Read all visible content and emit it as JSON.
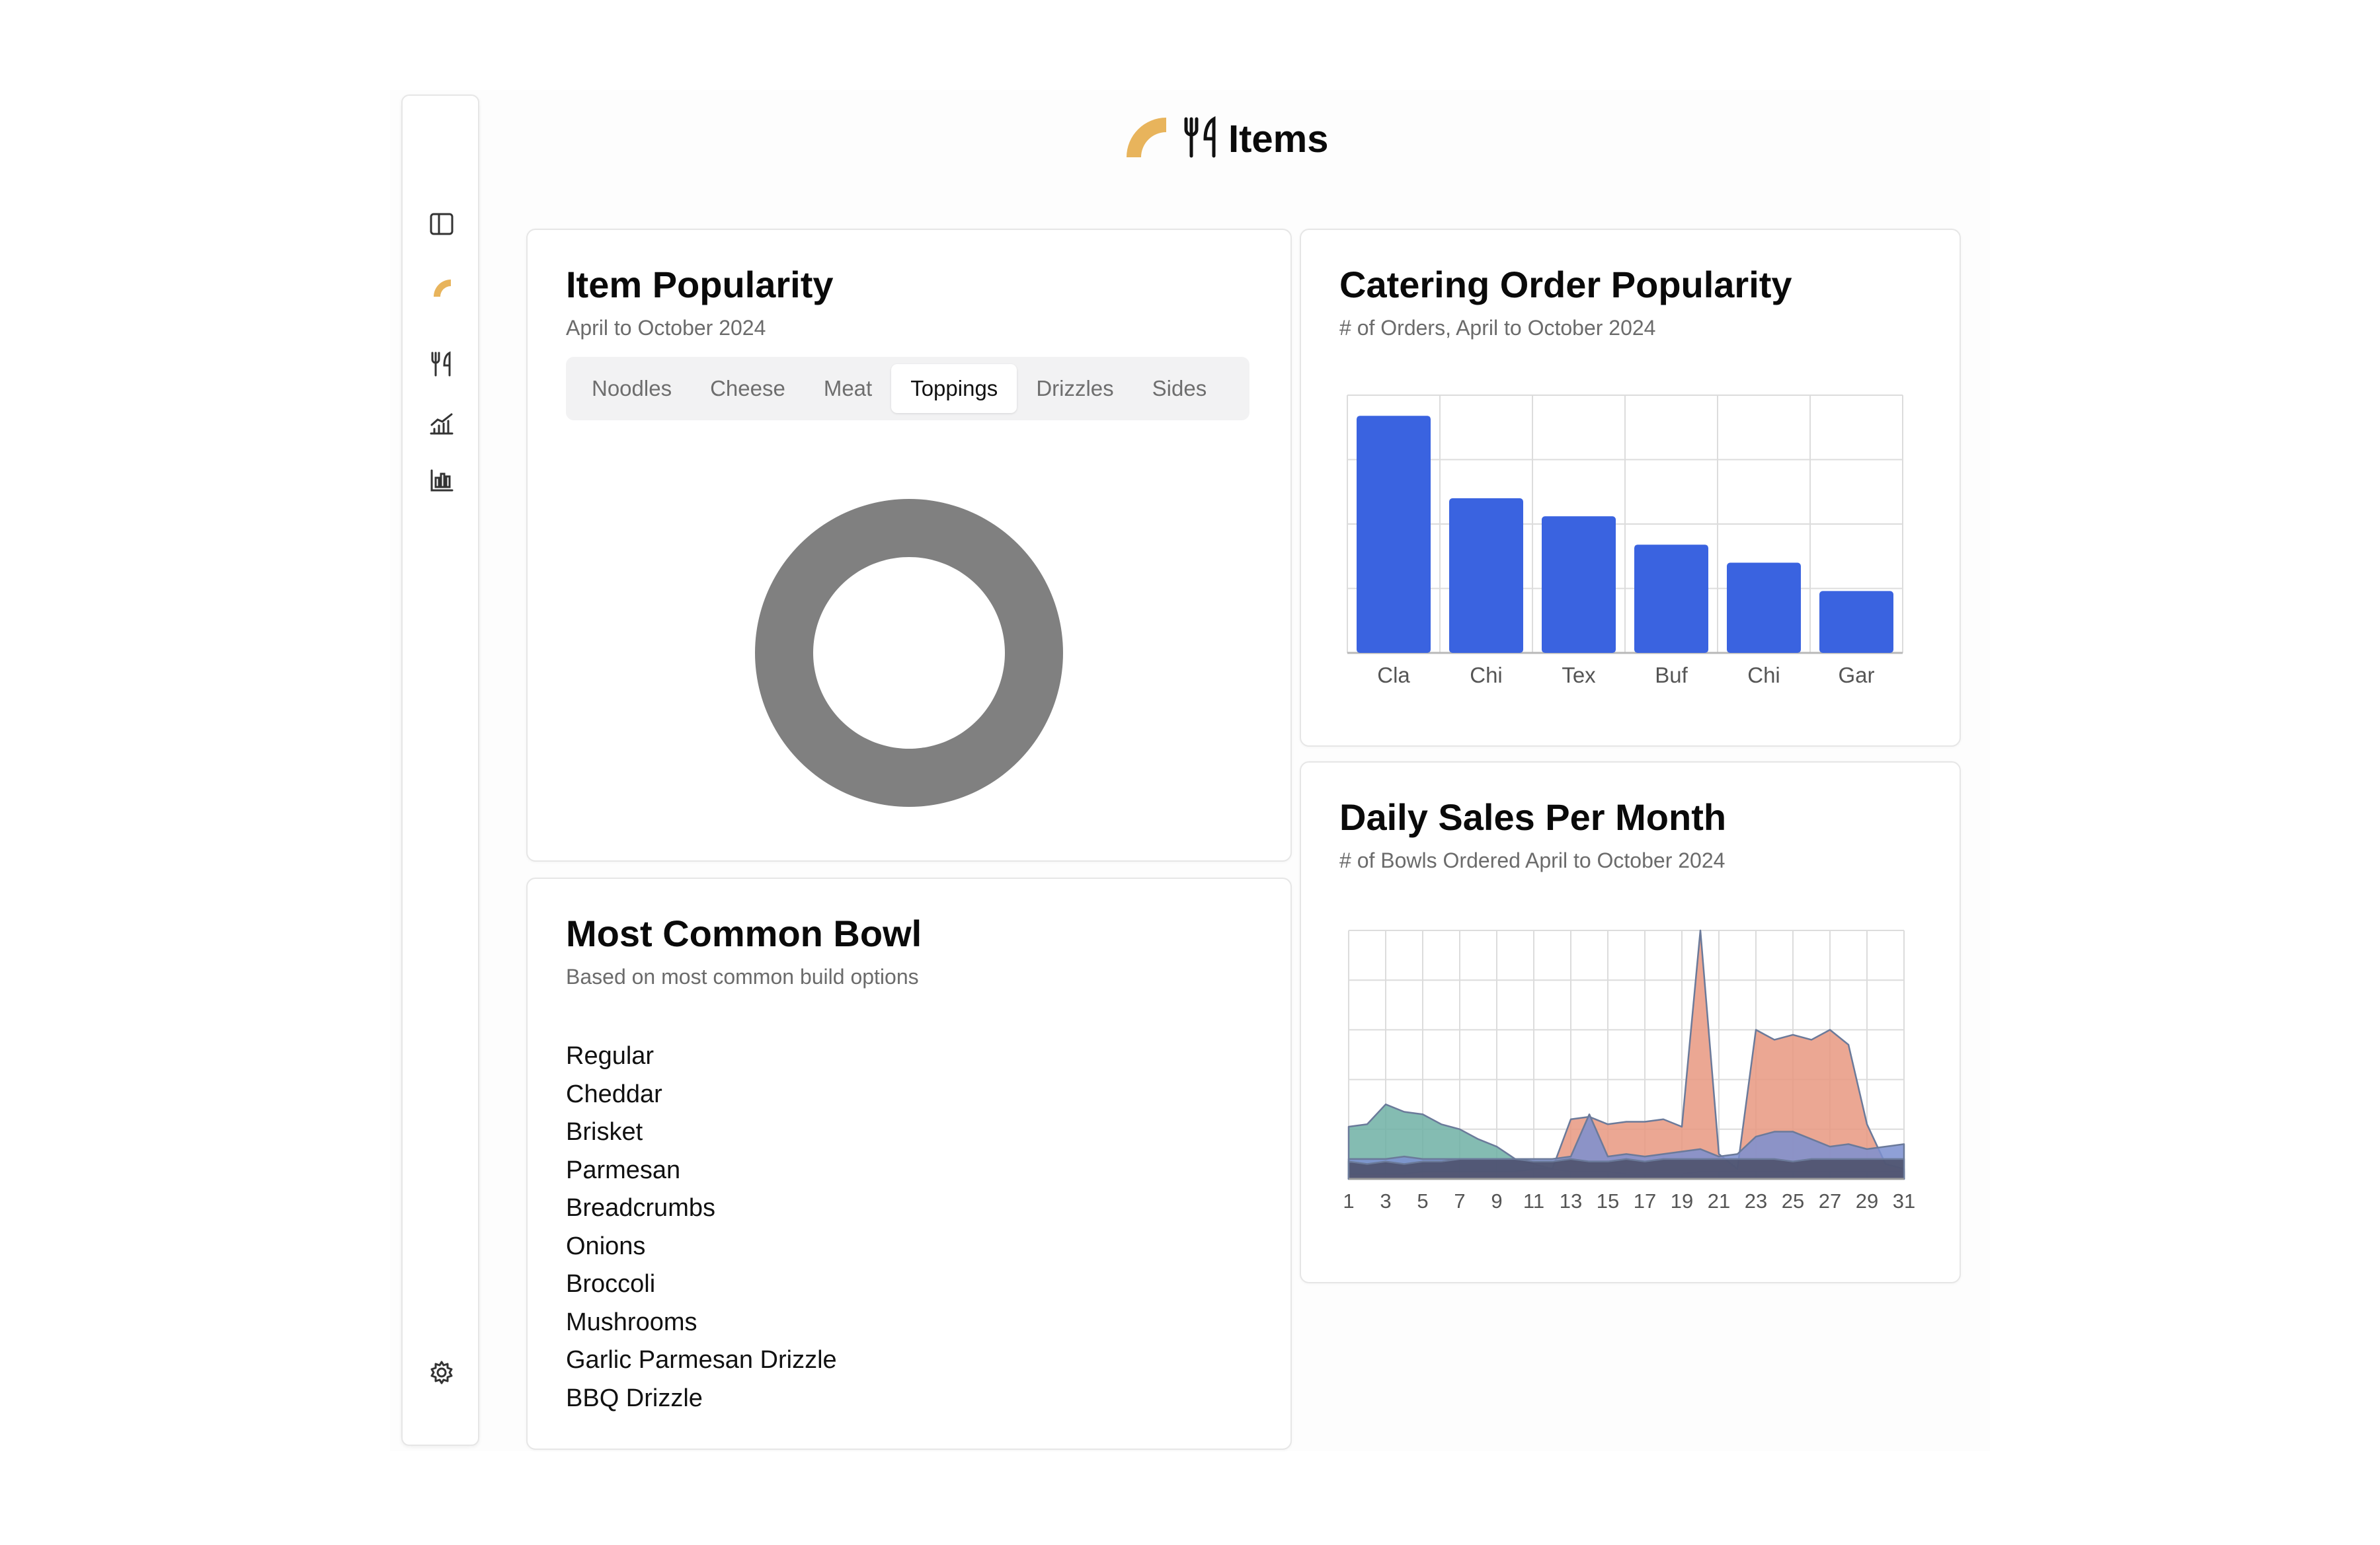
{
  "page": {
    "title": "Items"
  },
  "sidebar": {
    "icons": [
      {
        "name": "sidebar-toggle-icon"
      },
      {
        "name": "app-logo-icon"
      },
      {
        "name": "utensils-icon"
      },
      {
        "name": "line-chart-icon"
      },
      {
        "name": "bar-chart-icon"
      },
      {
        "name": "settings-gear-icon"
      }
    ]
  },
  "colors": {
    "accent": "#E8B45C",
    "bar": "#3A63E0",
    "donut": "#808080",
    "area_teal": "#6FB0A4",
    "area_salmon": "#E89880",
    "area_blue": "#7B8FD0",
    "area_dark": "#4A4E66"
  },
  "item_popularity": {
    "title": "Item Popularity",
    "subtitle": "April to October 2024",
    "tabs": [
      "Noodles",
      "Cheese",
      "Meat",
      "Toppings",
      "Drizzles",
      "Sides"
    ],
    "active_tab": "Toppings"
  },
  "catering": {
    "title": "Catering Order Popularity",
    "subtitle": "# of Orders, April to October 2024"
  },
  "daily_sales": {
    "title": "Daily Sales Per Month",
    "subtitle": "# of Bowls Ordered April to October 2024"
  },
  "common_bowl": {
    "title": "Most Common Bowl",
    "subtitle": "Based on most common build options",
    "items": [
      "Regular",
      "Cheddar",
      "Brisket",
      "Parmesan",
      "Breadcrumbs",
      "Onions",
      "Broccoli",
      "Mushrooms",
      "Garlic Parmesan Drizzle",
      "BBQ Drizzle"
    ]
  },
  "chart_data": [
    {
      "type": "pie",
      "values": [
        1
      ],
      "donut": true
    },
    {
      "type": "bar",
      "categories": [
        "Cla",
        "Chi",
        "Tex",
        "Buf",
        "Chi",
        "Gar"
      ],
      "values": [
        92,
        60,
        53,
        42,
        35,
        24
      ],
      "ylim": [
        0,
        100
      ],
      "grid": true
    },
    {
      "type": "area",
      "x": [
        1,
        2,
        3,
        4,
        5,
        6,
        7,
        8,
        9,
        10,
        11,
        12,
        13,
        14,
        15,
        16,
        17,
        18,
        19,
        20,
        21,
        22,
        23,
        24,
        25,
        26,
        27,
        28,
        29,
        30,
        31
      ],
      "xticks": [
        "1",
        "3",
        "5",
        "7",
        "9",
        "11",
        "13",
        "15",
        "17",
        "19",
        "21",
        "23",
        "25",
        "27",
        "29",
        "31"
      ],
      "ylim": [
        0,
        100
      ],
      "grid": true,
      "series": [
        {
          "color": "#6FB0A4",
          "values": [
            21,
            22,
            30,
            27,
            26,
            22,
            20,
            16,
            13,
            8,
            6,
            4,
            3,
            3,
            3,
            2,
            2,
            2,
            2,
            3,
            3,
            3,
            3,
            3,
            3,
            3,
            3,
            3,
            3,
            3,
            3
          ]
        },
        {
          "color": "#E89880",
          "values": [
            2,
            2,
            2,
            2,
            3,
            3,
            3,
            3,
            3,
            3,
            4,
            4,
            24,
            25,
            22,
            23,
            23,
            24,
            21,
            100,
            10,
            4,
            60,
            56,
            58,
            56,
            60,
            54,
            22,
            6,
            4
          ]
        },
        {
          "color": "#7B8FD0",
          "values": [
            8,
            8,
            8,
            9,
            8,
            8,
            8,
            8,
            8,
            8,
            8,
            8,
            9,
            26,
            9,
            10,
            9,
            10,
            11,
            12,
            9,
            10,
            17,
            19,
            19,
            16,
            13,
            14,
            12,
            13,
            14
          ]
        },
        {
          "color": "#4A4E66",
          "values": [
            7,
            6,
            7,
            6,
            7,
            7,
            8,
            8,
            8,
            8,
            7,
            7,
            8,
            7,
            7,
            8,
            7,
            8,
            8,
            8,
            8,
            8,
            8,
            8,
            7,
            8,
            8,
            8,
            8,
            8,
            8
          ]
        }
      ]
    }
  ]
}
